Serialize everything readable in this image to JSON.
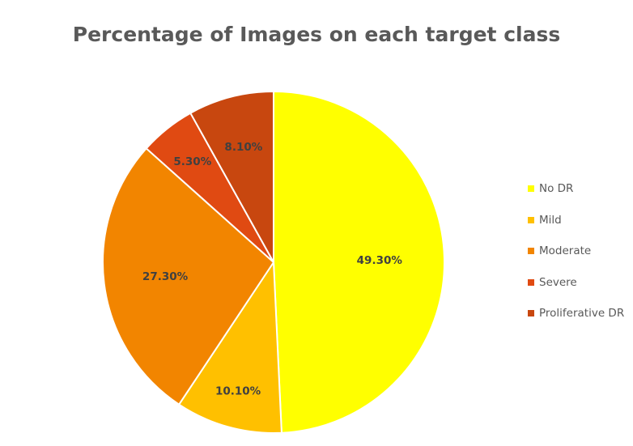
{
  "chart_data": {
    "type": "pie",
    "title": "Percentage of Images on each target class",
    "categories": [
      "No DR",
      "Mild",
      "Moderate",
      "Severe",
      "Proliferative DR"
    ],
    "values": [
      49.3,
      10.1,
      27.3,
      5.3,
      8.1
    ],
    "data_labels": [
      "49.30%",
      "10.10%",
      "27.30%",
      "5.30%",
      "8.10%"
    ],
    "colors": [
      "#FFFF00",
      "#FFC000",
      "#F28500",
      "#E04A12",
      "#C8470F"
    ],
    "legend_position": "right"
  }
}
